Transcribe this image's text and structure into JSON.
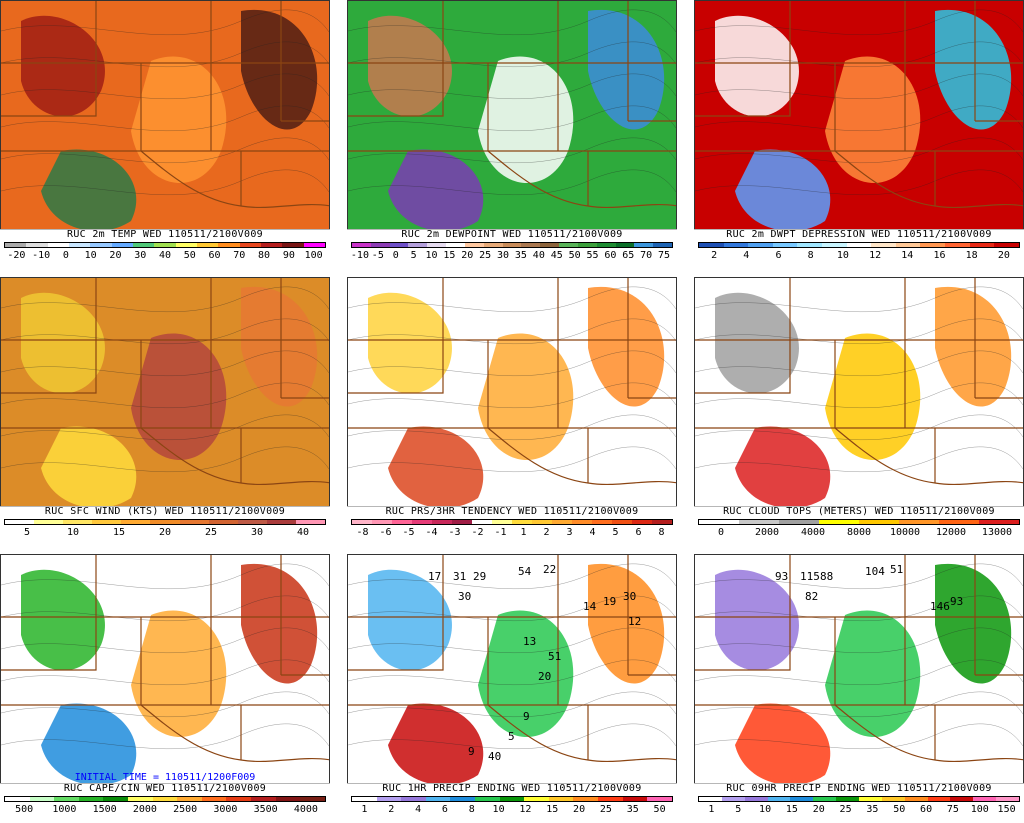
{
  "panels": [
    {
      "id": "temp",
      "title": "RUC 2m TEMP WED 110511/2100V009",
      "colors": [
        "#aaaaaa",
        "#dddddd",
        "#ffffff",
        "#c8e6ff",
        "#96c8ff",
        "#64aaff",
        "#50c878",
        "#a0e050",
        "#ffff64",
        "#ffc832",
        "#ff8c1e",
        "#e6461e",
        "#b41e1e",
        "#781414",
        "#ff00ff"
      ],
      "ticks": [
        "-20",
        "-10",
        "0",
        "10",
        "20",
        "30",
        "40",
        "50",
        "60",
        "70",
        "80",
        "90",
        "100"
      ],
      "map": {
        "bg": "#e8691e",
        "blobs": [
          "#a01e14",
          "#ff9632",
          "#501e14",
          "#2d7a46"
        ]
      }
    },
    {
      "id": "dewpoint",
      "title": "RUC 2m DEWPOINT WED 110511/2100V009",
      "colors": [
        "#c832c8",
        "#8c3cb4",
        "#6e50c8",
        "#b4a0dc",
        "#e6dcf0",
        "#ffffff",
        "#ffc8a0",
        "#e6aa78",
        "#c88c5a",
        "#aa7850",
        "#8c643c",
        "#5ab45a",
        "#3ca03c",
        "#1e8c32",
        "#0a6e28",
        "#3c96dc",
        "#1e64b4"
      ],
      "ticks": [
        "-10",
        "-5",
        "0",
        "5",
        "10",
        "15",
        "20",
        "25",
        "30",
        "35",
        "40",
        "45",
        "50",
        "55",
        "60",
        "65",
        "70",
        "75"
      ],
      "map": {
        "bg": "#2eaa3c",
        "blobs": [
          "#c87850",
          "#ffffff",
          "#3c8cdc",
          "#7a3cb4"
        ]
      }
    },
    {
      "id": "dwptdep",
      "title": "RUC 2m DWPT DEPRESSION WED 110511/2100V009",
      "colors": [
        "#1e50b4",
        "#3278dc",
        "#50a0f0",
        "#78c8ff",
        "#a0e6ff",
        "#c8f5ff",
        "#ffffff",
        "#ffe6c8",
        "#ffc896",
        "#ff9650",
        "#ff6432",
        "#e62814",
        "#c80000"
      ],
      "ticks": [
        "2",
        "4",
        "6",
        "8",
        "10",
        "12",
        "14",
        "16",
        "18",
        "20"
      ],
      "map": {
        "bg": "#c80000",
        "blobs": [
          "#ffffff",
          "#ff8c3c",
          "#28c8e6",
          "#5aa0ff"
        ]
      }
    },
    {
      "id": "sfcwind",
      "title": "RUC SFC WIND (KTS) WED 110511/2100V009",
      "colors": [
        "#ffffff",
        "#ffff96",
        "#ffe664",
        "#ffc83c",
        "#ffaa32",
        "#f08c28",
        "#e67832",
        "#d26432",
        "#be5a46",
        "#aa3c3c",
        "#ff96b4"
      ],
      "ticks": [
        "5",
        "10",
        "15",
        "20",
        "25",
        "30",
        "40"
      ],
      "map": {
        "bg": "#dc8c28",
        "blobs": [
          "#f0c832",
          "#b4463c",
          "#e67832",
          "#ffdc3c"
        ]
      }
    },
    {
      "id": "prstend",
      "title": "RUC PRS/3HR TENDENCY WED 110511/2100V009",
      "colors": [
        "#ffb4c8",
        "#ff96b4",
        "#ff6496",
        "#e63c78",
        "#c8285a",
        "#a01e46",
        "#ffffff",
        "#ffff96",
        "#ffdc3c",
        "#ffc832",
        "#ffaa32",
        "#ff8c28",
        "#ff6e1e",
        "#f05014",
        "#dc2814",
        "#b41e1e"
      ],
      "ticks": [
        "-8",
        "-6",
        "-5",
        "-4",
        "-3",
        "-2",
        "-1",
        "1",
        "2",
        "3",
        "4",
        "5",
        "6",
        "8"
      ],
      "map": {
        "bg": "#ffffff",
        "blobs": [
          "#ffd23c",
          "#ffaa32",
          "#ff8c28",
          "#dc461e"
        ]
      }
    },
    {
      "id": "cloudtops",
      "title": "RUC CLOUD TOPS (METERS) WED 110511/2100V009",
      "colors": [
        "#ffffff",
        "#c8c8c8",
        "#a0a0a0",
        "#ffff00",
        "#ffc800",
        "#ff9628",
        "#ff6414",
        "#dc1e1e"
      ],
      "ticks": [
        "0",
        "2000",
        "4000",
        "8000",
        "10000",
        "12000",
        "13000"
      ],
      "map": {
        "bg": "#ffffff",
        "blobs": [
          "#a0a0a0",
          "#ffc800",
          "#ff9628",
          "#dc1e1e"
        ]
      }
    },
    {
      "id": "capecin",
      "title": "RUC CAPE/CIN WED 110511/2100V009",
      "subtitle": "INITIAL TIME = 110511/1200F009",
      "colors": [
        "#ffffff",
        "#c8ffc8",
        "#64dc64",
        "#28b428",
        "#0a8c0a",
        "#ffff64",
        "#ffdc3c",
        "#ffaa32",
        "#ff6e1e",
        "#e63c14",
        "#b41e1e",
        "#821414",
        "#781e14"
      ],
      "ticks": [
        "500",
        "1000",
        "1500",
        "2000",
        "2500",
        "3000",
        "3500",
        "4000"
      ],
      "map": {
        "bg": "#ffffff",
        "blobs": [
          "#28b428",
          "#ffaa32",
          "#c83214",
          "#1e8cdc"
        ]
      }
    },
    {
      "id": "precip1hr",
      "title": "RUC 1HR PRECIP ENDING WED 110511/2100V009",
      "colors": [
        "#ffffff",
        "#b4a0f0",
        "#9678dc",
        "#50b4f0",
        "#1e8cdc",
        "#28c850",
        "#0a960a",
        "#ffff32",
        "#ffc828",
        "#ff8c1e",
        "#ff3c14",
        "#c80a0a",
        "#ff64b4"
      ],
      "ticks": [
        "1",
        "2",
        "4",
        "6",
        "8",
        "10",
        "12",
        "15",
        "20",
        "25",
        "35",
        "50"
      ],
      "numbers": [
        "17",
        "31",
        "29",
        "30",
        "54",
        "22",
        "14",
        "19",
        "30",
        "12",
        "13",
        "51",
        "20",
        "9",
        "5",
        "9",
        "40"
      ],
      "map": {
        "bg": "#ffffff",
        "blobs": [
          "#50b4f0",
          "#28c850",
          "#ff8c1e",
          "#c80a0a"
        ]
      }
    },
    {
      "id": "precip9hr",
      "title": "RUC 09HR PRECIP ENDING WED 110511/2100V009",
      "colors": [
        "#ffffff",
        "#b4a0f0",
        "#9678dc",
        "#50b4f0",
        "#1e8cdc",
        "#28c850",
        "#0a960a",
        "#ffff32",
        "#ffc828",
        "#ff8c1e",
        "#ff3c14",
        "#c80a0a",
        "#ff64b4",
        "#ff96c8"
      ],
      "ticks": [
        "1",
        "5",
        "10",
        "15",
        "20",
        "25",
        "35",
        "50",
        "60",
        "75",
        "100",
        "150"
      ],
      "numbers": [
        "93",
        "115",
        "88",
        "82",
        "104",
        "51",
        "146",
        "93"
      ],
      "map": {
        "bg": "#ffffff",
        "blobs": [
          "#9678dc",
          "#28c850",
          "#0a960a",
          "#ff3c14"
        ]
      }
    }
  ]
}
